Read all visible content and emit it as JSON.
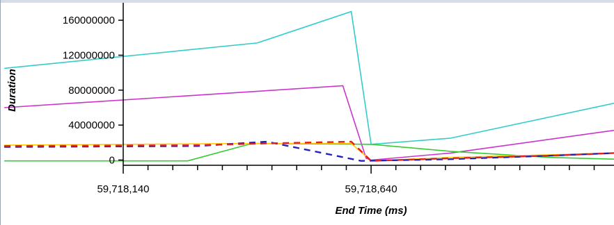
{
  "chart_data": {
    "type": "line",
    "title": "",
    "xlabel": "End Time  (ms)",
    "ylabel": "Duration",
    "x_tick_labels": [
      "59,718,140",
      "59,718,640"
    ],
    "x_tick_values": [
      59718140,
      59718640
    ],
    "y_tick_labels": [
      "160000000",
      "120000000",
      "80000000",
      "40000000",
      "0"
    ],
    "y_tick_values": [
      160000000,
      120000000,
      80000000,
      40000000,
      0
    ],
    "xlim": [
      59718140,
      59719130
    ],
    "ylim": [
      -6000000,
      180000000
    ],
    "grid": false,
    "legend": "none",
    "series": [
      {
        "color": "#33cccc",
        "dash": "solid",
        "x": [
          59717900,
          59718410,
          59718600,
          59718640,
          59718800,
          59719130
        ],
        "y": [
          105000000,
          134000000,
          170000000,
          18000000,
          25000000,
          65000000
        ]
      },
      {
        "color": "#cc33cc",
        "dash": "solid",
        "x": [
          59717900,
          59718583,
          59718630,
          59718640,
          59718800,
          59719130
        ],
        "y": [
          60000000,
          85000000,
          2000000,
          0,
          8000000,
          34000000
        ]
      },
      {
        "color": "#33cc33",
        "dash": "solid",
        "x": [
          59717900,
          59718270,
          59718400,
          59718640,
          59718800,
          59719000,
          59719130
        ],
        "y": [
          -1000000,
          -1000000,
          19000000,
          18000000,
          10000000,
          3000000,
          1000000
        ]
      },
      {
        "color": "#ffcc00",
        "dash": "solid",
        "x": [
          59717900,
          59718400,
          59718600,
          59718640,
          59718800,
          59719130
        ],
        "y": [
          17000000,
          19000000,
          19000000,
          -1000000,
          3000000,
          8000000
        ]
      },
      {
        "color": "#2222bb",
        "dash": "dashed",
        "x": [
          59717900,
          59718290,
          59718430,
          59718620,
          59718800,
          59719000,
          59719130
        ],
        "y": [
          15000000,
          16000000,
          21000000,
          -1000000,
          1000000,
          5000000,
          8000000
        ]
      },
      {
        "color": "#dd2222",
        "dash": "dashed",
        "x": [
          59717900,
          59718290,
          59718430,
          59718600,
          59718640,
          59718800,
          59719000,
          59719130
        ],
        "y": [
          16000000,
          17000000,
          19000000,
          21000000,
          -1000000,
          2000000,
          5000000,
          8000000
        ]
      }
    ]
  }
}
